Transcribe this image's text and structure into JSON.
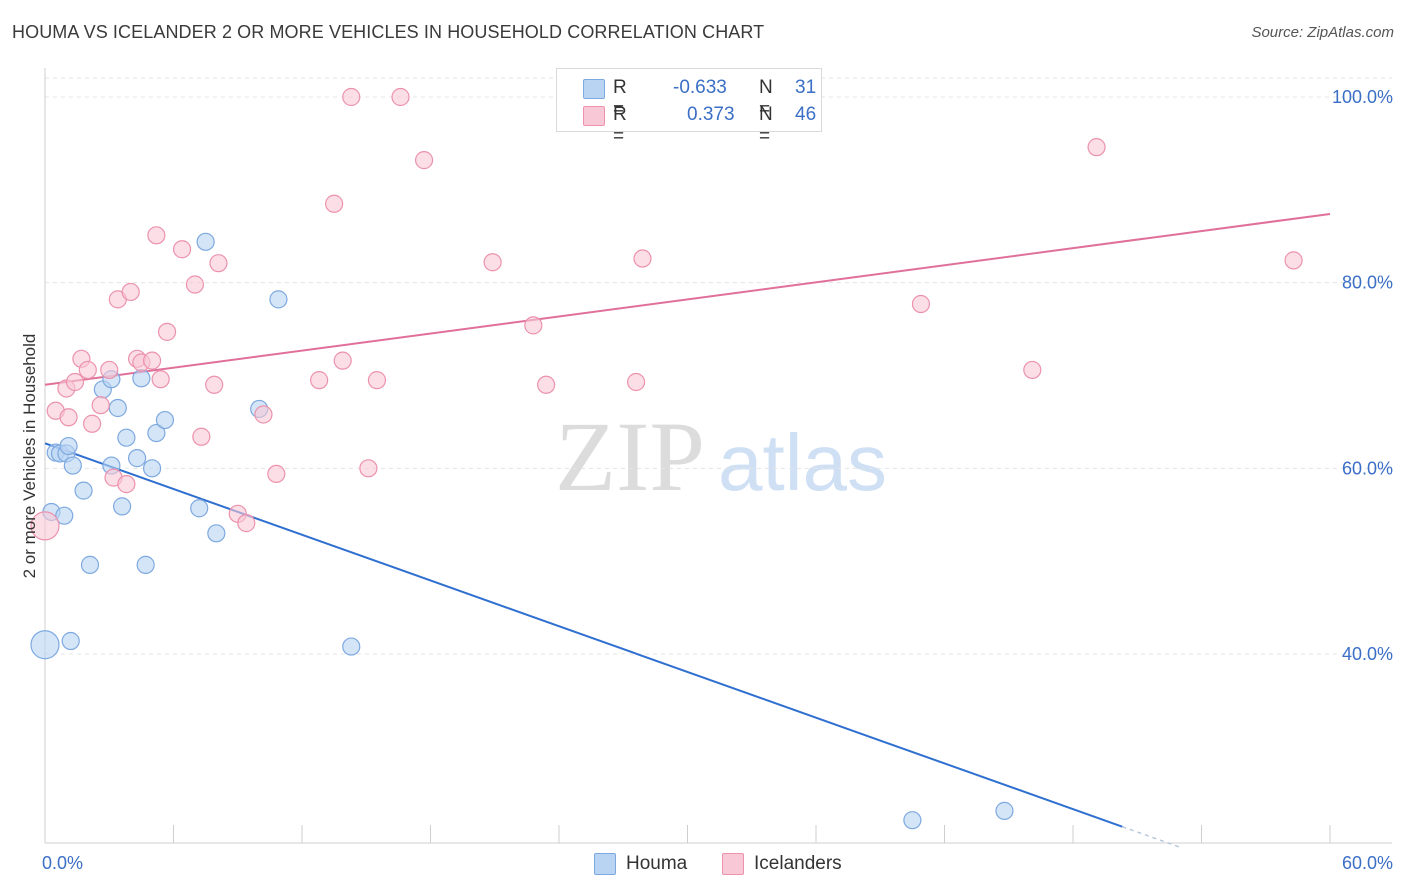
{
  "title": "HOUMA VS ICELANDER 2 OR MORE VEHICLES IN HOUSEHOLD CORRELATION CHART",
  "source": "Source: ZipAtlas.com",
  "watermark": {
    "zip": "ZIP",
    "atlas": "atlas"
  },
  "legend": {
    "rows": [
      {
        "r_label": "R =",
        "r_value": "-0.633",
        "n_label": "N =",
        "n_value": "31",
        "color": "#b9d3f3",
        "border": "#7ea9e0"
      },
      {
        "r_label": "R =",
        "r_value": "0.373",
        "n_label": "N =",
        "n_value": "46",
        "color": "#f9c8d6",
        "border": "#ec92ad"
      }
    ]
  },
  "bottom_legend": [
    {
      "label": "Houma",
      "color": "#b9d3f3",
      "border": "#7ea9e0"
    },
    {
      "label": "Icelanders",
      "color": "#f9c8d6",
      "border": "#ec92ad"
    }
  ],
  "chart_data": {
    "type": "scatter",
    "title": "HOUMA VS ICELANDER 2 OR MORE VEHICLES IN HOUSEHOLD CORRELATION CHART",
    "xlabel": "",
    "ylabel": "2 or more Vehicles in Household",
    "xlim": [
      0,
      60
    ],
    "ylim": [
      20,
      102
    ],
    "x_tick_labels": [
      {
        "value": 0,
        "label": "0.0%"
      },
      {
        "value": 60,
        "label": "60.0%"
      }
    ],
    "y_tick_labels": [
      {
        "value": 100,
        "label": "100.0%"
      },
      {
        "value": 80,
        "label": "80.0%"
      },
      {
        "value": 60,
        "label": "60.0%"
      },
      {
        "value": 40,
        "label": "40.0%"
      }
    ],
    "grid": true,
    "series": [
      {
        "name": "Houma",
        "color": "#7ea9e0",
        "fill": "#b9d3f3",
        "line_color": "#2f6fd0",
        "trend": {
          "x0": 0,
          "y0": 62.7,
          "x1": 50.3,
          "y1": 21.4,
          "dash_to_x": 53.0
        },
        "points": [
          [
            0.3,
            55.3
          ],
          [
            0.5,
            61.7
          ],
          [
            0.7,
            61.6
          ],
          [
            0.9,
            54.9
          ],
          [
            1.0,
            61.6
          ],
          [
            1.1,
            62.4
          ],
          [
            1.3,
            60.3
          ],
          [
            1.8,
            57.6
          ],
          [
            2.1,
            49.6
          ],
          [
            2.7,
            68.5
          ],
          [
            3.1,
            60.3
          ],
          [
            3.4,
            66.5
          ],
          [
            3.6,
            55.9
          ],
          [
            3.8,
            63.3
          ],
          [
            4.3,
            61.1
          ],
          [
            4.5,
            69.7
          ],
          [
            4.7,
            49.6
          ],
          [
            5.0,
            60.0
          ],
          [
            5.2,
            63.8
          ],
          [
            5.6,
            65.2
          ],
          [
            7.2,
            55.7
          ],
          [
            7.5,
            84.4
          ],
          [
            8.0,
            53.0
          ],
          [
            10.0,
            66.4
          ],
          [
            10.9,
            78.2
          ],
          [
            1.2,
            41.4
          ],
          [
            0.0,
            41.0
          ],
          [
            14.3,
            40.8
          ],
          [
            40.5,
            22.1
          ],
          [
            44.8,
            23.1
          ],
          [
            3.1,
            69.6
          ]
        ]
      },
      {
        "name": "Icelanders",
        "color": "#ec92ad",
        "fill": "#f9c8d6",
        "line_color": "#e0709a",
        "trend": {
          "x0": 0,
          "y0": 69.0,
          "x1": 60,
          "y1": 87.4
        },
        "points": [
          [
            0.0,
            53.8
          ],
          [
            0.5,
            66.2
          ],
          [
            1.0,
            68.6
          ],
          [
            1.1,
            65.5
          ],
          [
            1.4,
            69.3
          ],
          [
            1.7,
            71.8
          ],
          [
            2.0,
            70.6
          ],
          [
            2.2,
            64.8
          ],
          [
            2.6,
            66.8
          ],
          [
            3.0,
            70.6
          ],
          [
            3.2,
            59.0
          ],
          [
            3.4,
            78.2
          ],
          [
            3.8,
            58.3
          ],
          [
            4.0,
            79.0
          ],
          [
            4.3,
            71.8
          ],
          [
            4.5,
            71.4
          ],
          [
            5.0,
            71.6
          ],
          [
            5.2,
            85.1
          ],
          [
            5.4,
            69.6
          ],
          [
            5.7,
            74.7
          ],
          [
            6.4,
            83.6
          ],
          [
            7.0,
            79.8
          ],
          [
            7.3,
            63.4
          ],
          [
            7.9,
            69.0
          ],
          [
            8.1,
            82.1
          ],
          [
            9.0,
            55.1
          ],
          [
            9.4,
            54.1
          ],
          [
            10.2,
            65.8
          ],
          [
            10.8,
            59.4
          ],
          [
            12.8,
            69.5
          ],
          [
            13.5,
            88.5
          ],
          [
            13.9,
            71.6
          ],
          [
            14.3,
            100.0
          ],
          [
            15.1,
            60.0
          ],
          [
            15.5,
            69.5
          ],
          [
            16.6,
            100.0
          ],
          [
            17.7,
            93.2
          ],
          [
            20.9,
            82.2
          ],
          [
            22.8,
            75.4
          ],
          [
            23.4,
            69.0
          ],
          [
            27.6,
            69.3
          ],
          [
            27.9,
            82.6
          ],
          [
            40.9,
            77.7
          ],
          [
            46.1,
            70.6
          ],
          [
            49.1,
            94.6
          ],
          [
            58.3,
            82.4
          ]
        ]
      }
    ]
  }
}
